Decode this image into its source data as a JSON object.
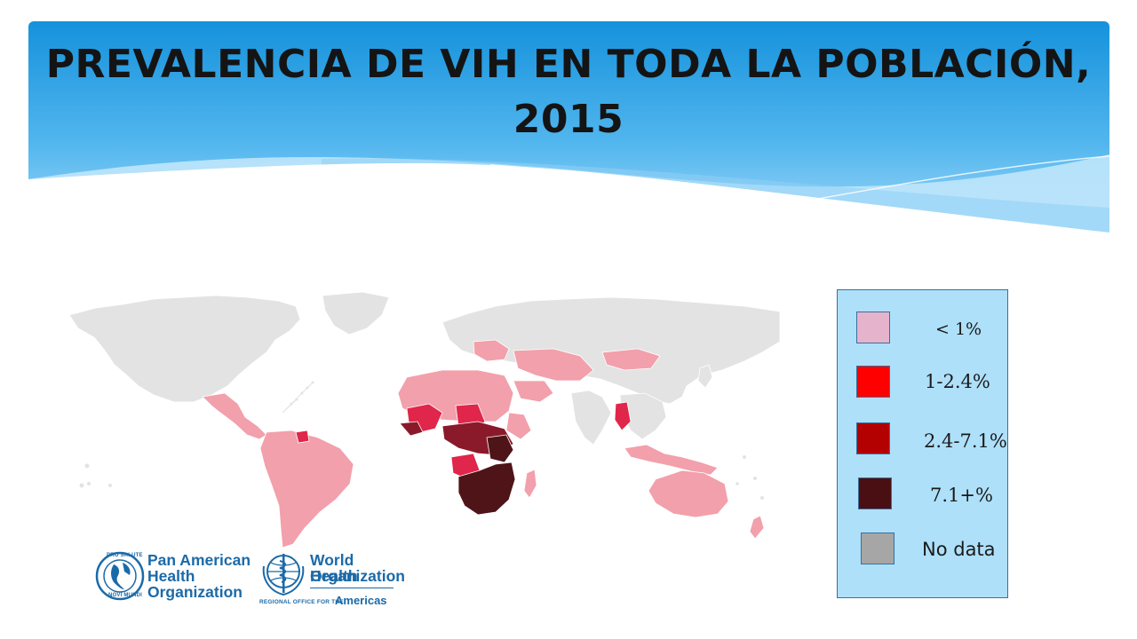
{
  "title": {
    "line1": "PREVALENCIA DE VIH EN TODA LA POBLACIÓN,",
    "line2": "2015"
  },
  "legend": {
    "items": [
      {
        "label": "< 1%",
        "color": "#e6b3cc"
      },
      {
        "label": "1-2.4%",
        "color": "#ff0000"
      },
      {
        "label": "2.4-7.1%",
        "color": "#b30000"
      },
      {
        "label": "7.1+%",
        "color": "#4a0f12"
      },
      {
        "label": "No data",
        "color": "#a6a6a6"
      }
    ]
  },
  "map_colors": {
    "no_data": "#e3e3e3",
    "low": "#f2a0ab",
    "mid": "#e0264a",
    "high": "#8a1a2a",
    "very_high": "#4e1418"
  },
  "logos": {
    "paho": {
      "line1": "Pan American",
      "line2": "Health",
      "line3": "Organization",
      "seal_top": "PRO SALUTE",
      "seal_bottom": "NOVI MUNDI",
      "icon": "paho-globe-icon"
    },
    "who": {
      "line1": "World Health",
      "line2": "Organization",
      "subline_small": "REGIONAL OFFICE FOR THE",
      "subline_big": "Americas",
      "icon": "who-emblem-icon"
    }
  },
  "colors": {
    "banner_top": "#1a9ae0",
    "banner_bottom": "#9ad6f8",
    "legend_bg": "#aee0fa",
    "legend_border": "#3b6f9a",
    "logo_blue": "#1b6aa8"
  }
}
